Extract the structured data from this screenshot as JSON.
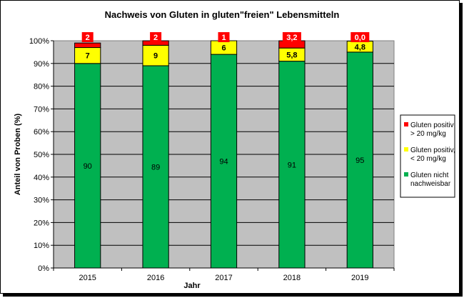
{
  "chart_data": {
    "type": "bar",
    "stacked": true,
    "percent": true,
    "title": "Nachweis von Gluten in gluten\"freien\" Lebensmitteln",
    "xlabel": "Jahr",
    "ylabel": "Anteil von Proben (%)",
    "ylim": [
      0,
      100
    ],
    "yticks": [
      "0%",
      "10%",
      "20%",
      "30%",
      "40%",
      "50%",
      "60%",
      "70%",
      "80%",
      "90%",
      "100%"
    ],
    "categories": [
      "2015",
      "2016",
      "2017",
      "2018",
      "2019"
    ],
    "series": [
      {
        "name": "Gluten nicht nachweisbar",
        "color": "#00b050",
        "values": [
          90,
          89,
          94,
          91,
          95
        ],
        "labels": [
          "90",
          "89",
          "94",
          "91",
          "95"
        ]
      },
      {
        "name": "Gluten positiv; < 20 mg/kg",
        "color": "#ffff00",
        "values": [
          7,
          9,
          6,
          5.8,
          4.8
        ],
        "labels": [
          "7",
          "9",
          "6",
          "5,8",
          "4,8"
        ]
      },
      {
        "name": "Gluten positiv; > 20 mg/kg",
        "color": "#ff0000",
        "values": [
          2,
          2,
          1,
          3.2,
          0.0
        ],
        "labels": [
          "2",
          "2",
          "1",
          "3,2",
          "0,0"
        ]
      }
    ],
    "legend": {
      "position": "right",
      "entries": [
        {
          "line1": "Gluten positiv;",
          "line2": "> 20 mg/kg",
          "color": "#ff0000"
        },
        {
          "line1": "Gluten positiv,",
          "line2": "< 20 mg/kg",
          "color": "#ffff00"
        },
        {
          "line1": "Gluten nicht",
          "line2": "nachweisbar",
          "color": "#00b050"
        }
      ]
    },
    "grid": true,
    "plot_background": "#c0c0c0"
  }
}
